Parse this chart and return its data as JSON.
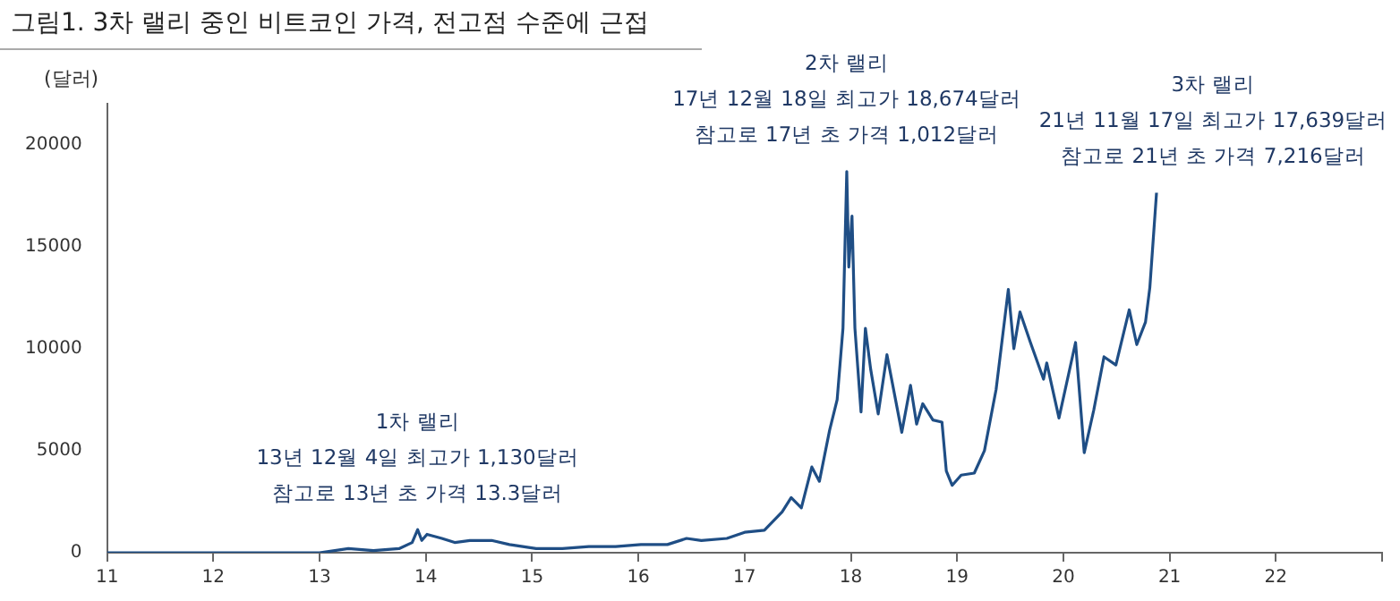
{
  "chart_data": {
    "type": "line",
    "title": "그림1. 3차 랠리 중인 비트코인 가격, 전고점 수준에 근접",
    "ylabel": "(달러)",
    "x": [
      "2011-01-01",
      "2011-06-01",
      "2012-01-01",
      "2012-06-01",
      "2013-01-01",
      "2013-04-10",
      "2013-07-05",
      "2013-10-01",
      "2013-11-15",
      "2013-12-04",
      "2013-12-18",
      "2014-01-05",
      "2014-02-25",
      "2014-04-10",
      "2014-06-01",
      "2014-08-15",
      "2014-10-15",
      "2015-01-15",
      "2015-04-15",
      "2015-07-15",
      "2015-10-15",
      "2016-01-10",
      "2016-04-10",
      "2016-06-15",
      "2016-08-05",
      "2016-11-01",
      "2017-01-01",
      "2017-03-10",
      "2017-05-10",
      "2017-06-10",
      "2017-07-15",
      "2017-08-20",
      "2017-09-15",
      "2017-10-20",
      "2017-11-15",
      "2017-12-05",
      "2017-12-18",
      "2017-12-25",
      "2018-01-05",
      "2018-01-15",
      "2018-02-05",
      "2018-02-20",
      "2018-03-10",
      "2018-04-05",
      "2018-05-05",
      "2018-06-25",
      "2018-07-25",
      "2018-08-15",
      "2018-09-05",
      "2018-10-10",
      "2018-11-10",
      "2018-11-25",
      "2018-12-15",
      "2019-01-15",
      "2019-03-01",
      "2019-04-05",
      "2019-05-15",
      "2019-06-26",
      "2019-07-15",
      "2019-08-05",
      "2019-09-10",
      "2019-10-25",
      "2019-11-05",
      "2019-12-17",
      "2020-02-12",
      "2020-03-13",
      "2020-04-15",
      "2020-05-20",
      "2020-06-30",
      "2020-08-15",
      "2020-09-10",
      "2020-10-10",
      "2020-10-25",
      "2020-11-17"
    ],
    "series": [
      {
        "color": "#1f4e85",
        "values": [
          0,
          0,
          0,
          0,
          0,
          200,
          100,
          200,
          500,
          1130,
          600,
          900,
          700,
          500,
          600,
          600,
          400,
          200,
          200,
          300,
          300,
          400,
          400,
          700,
          600,
          700,
          1000,
          1100,
          2000,
          2700,
          2200,
          4200,
          3500,
          6000,
          7500,
          11000,
          18674,
          14000,
          16500,
          11000,
          6900,
          11000,
          9000,
          6800,
          9700,
          5900,
          8200,
          6300,
          7300,
          6500,
          6400,
          4000,
          3300,
          3800,
          3900,
          5000,
          8000,
          12900,
          10000,
          11800,
          10300,
          8500,
          9300,
          6600,
          10300,
          4900,
          7000,
          9600,
          9200,
          11900,
          10200,
          11300,
          13000,
          17639
        ]
      }
    ],
    "xlim": [
      "2011-01-01",
      "2023-01-01"
    ],
    "xticks": [
      {
        "value": "2011-01-01",
        "label": "11"
      },
      {
        "value": "2012-01-01",
        "label": "12"
      },
      {
        "value": "2013-01-01",
        "label": "13"
      },
      {
        "value": "2014-01-01",
        "label": "14"
      },
      {
        "value": "2015-01-01",
        "label": "15"
      },
      {
        "value": "2016-01-01",
        "label": "16"
      },
      {
        "value": "2017-01-01",
        "label": "17"
      },
      {
        "value": "2018-01-01",
        "label": "18"
      },
      {
        "value": "2019-01-01",
        "label": "19"
      },
      {
        "value": "2020-01-01",
        "label": "20"
      },
      {
        "value": "2021-01-01",
        "label": "21"
      },
      {
        "value": "2022-01-01",
        "label": "22"
      },
      {
        "value": "2023-01-01",
        "label": null
      }
    ],
    "ylim": [
      0,
      22000
    ],
    "yticks": [
      0,
      5000,
      10000,
      15000,
      20000
    ],
    "grid": false,
    "legend": false,
    "marker": "none",
    "line_style": "solid",
    "annotations": [
      {
        "text": "1차 랠리\n13년 12월 4일 최고가 1,130달러\n참고로 13년 초 가격 13.3달러",
        "x": "2013-12-04",
        "y": 1130
      },
      {
        "text": "2차 랠리\n17년 12월 18일 최고가 18,674달러\n참고로 17년 초 가격 1,012달러",
        "x": "2017-12-18",
        "y": 18674
      },
      {
        "text": "3차 랠리\n21년 11월 17일 최고가 17,639달러\n참고로 21년 초 가격 7,216달러",
        "x": "2020-11-17",
        "y": 17639
      }
    ]
  }
}
